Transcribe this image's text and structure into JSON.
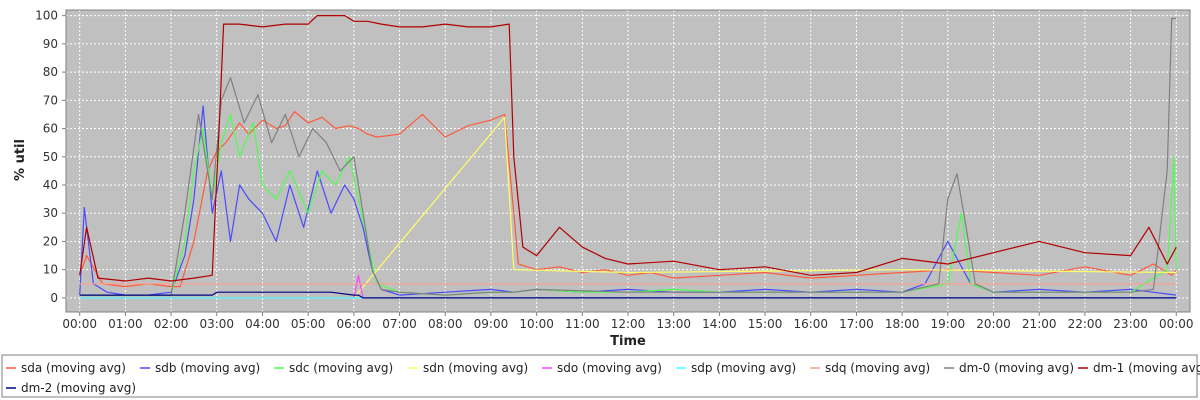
{
  "chart_data": {
    "type": "line",
    "title": "",
    "xlabel": "Time",
    "ylabel": "% util",
    "x_tick_labels": [
      "00:00",
      "01:00",
      "02:00",
      "03:00",
      "04:00",
      "05:00",
      "06:00",
      "07:00",
      "08:00",
      "09:00",
      "10:00",
      "11:00",
      "12:00",
      "13:00",
      "14:00",
      "15:00",
      "16:00",
      "17:00",
      "18:00",
      "19:00",
      "20:00",
      "21:00",
      "22:00",
      "23:00",
      "00:00"
    ],
    "x_tick_hours": [
      0,
      1,
      2,
      3,
      4,
      5,
      6,
      7,
      8,
      9,
      10,
      11,
      12,
      13,
      14,
      15,
      16,
      17,
      18,
      19,
      20,
      21,
      22,
      23,
      24
    ],
    "y_ticks": [
      0,
      10,
      20,
      30,
      40,
      50,
      60,
      70,
      80,
      90,
      100
    ],
    "xlim": [
      -0.3,
      24.3
    ],
    "ylim": [
      -5,
      102
    ],
    "grid": true,
    "legend_position": "bottom",
    "background": "#c0c0c0",
    "series": [
      {
        "name": "sda (moving avg)",
        "color": "#ff5a3c",
        "x": [
          0,
          0.15,
          0.5,
          1,
          1.5,
          2,
          2.2,
          2.5,
          2.8,
          3.0,
          3.2,
          3.5,
          3.7,
          4,
          4.3,
          4.5,
          4.7,
          5,
          5.3,
          5.6,
          5.9,
          6.1,
          6.3,
          6.5,
          7,
          7.5,
          8,
          8.5,
          9,
          9.3,
          9.5,
          9.6,
          10,
          10.5,
          11,
          11.5,
          12,
          12.5,
          13,
          14,
          15,
          16,
          17,
          18,
          19,
          20,
          21,
          22,
          23,
          23.5,
          23.9,
          24
        ],
        "y": [
          8,
          15,
          5,
          4,
          5,
          4,
          4,
          20,
          45,
          52,
          55,
          62,
          58,
          63,
          60,
          61,
          66,
          62,
          64,
          60,
          61,
          60,
          58,
          57,
          58,
          65,
          57,
          61,
          63,
          65,
          30,
          12,
          10,
          11,
          9,
          10,
          8,
          9,
          7,
          8,
          9,
          7,
          8,
          9,
          10,
          9,
          8,
          11,
          8,
          12,
          8,
          10
        ]
      },
      {
        "name": "sdb (moving avg)",
        "color": "#4a4aff",
        "x": [
          0,
          0.1,
          0.3,
          0.6,
          1,
          1.5,
          2,
          2.3,
          2.5,
          2.7,
          2.9,
          3.1,
          3.3,
          3.5,
          3.7,
          4,
          4.3,
          4.6,
          4.9,
          5.2,
          5.5,
          5.8,
          6,
          6.2,
          6.4,
          6.6,
          6.8,
          7,
          8,
          9,
          9.5,
          10,
          11,
          12,
          13,
          14,
          15,
          16,
          17,
          18,
          18.5,
          19,
          19.5,
          20,
          21,
          22,
          23,
          24
        ],
        "y": [
          1,
          32,
          5,
          2,
          1,
          1,
          2,
          15,
          35,
          68,
          30,
          45,
          20,
          40,
          35,
          30,
          20,
          40,
          25,
          45,
          30,
          40,
          35,
          25,
          10,
          3,
          2,
          1,
          2,
          3,
          2,
          3,
          2,
          3,
          2,
          2,
          3,
          2,
          3,
          2,
          5,
          20,
          5,
          2,
          3,
          2,
          3,
          1
        ]
      },
      {
        "name": "sdc (moving avg)",
        "color": "#4dff4d",
        "x": [
          0,
          1,
          2,
          2.3,
          2.5,
          2.7,
          2.9,
          3.1,
          3.3,
          3.5,
          3.8,
          4,
          4.3,
          4.6,
          5,
          5.3,
          5.6,
          5.9,
          6.1,
          6.3,
          6.5,
          7,
          8,
          9,
          9.5,
          10,
          11,
          12,
          13,
          14,
          15,
          16,
          17,
          18,
          19,
          19.3,
          19.5,
          20,
          21,
          22,
          23,
          23.8,
          23.95,
          24
        ],
        "y": [
          1,
          1,
          1,
          20,
          45,
          60,
          35,
          55,
          65,
          50,
          62,
          40,
          35,
          45,
          30,
          45,
          40,
          50,
          35,
          20,
          5,
          2,
          1,
          2,
          2,
          3,
          2,
          2,
          3,
          2,
          2,
          2,
          2,
          2,
          5,
          30,
          5,
          2,
          2,
          2,
          2,
          10,
          50,
          10
        ]
      },
      {
        "name": "sdn (moving avg)",
        "color": "#ffff66",
        "x": [
          0,
          6,
          9.3,
          9.5,
          12,
          18,
          24
        ],
        "y": [
          0,
          0,
          64,
          10,
          9,
          10,
          9
        ]
      },
      {
        "name": "sdo (moving avg)",
        "color": "#ff44ff",
        "x": [
          0,
          6,
          6.1,
          6.2,
          12,
          24
        ],
        "y": [
          0,
          0,
          8,
          0,
          0,
          0
        ]
      },
      {
        "name": "sdp (moving avg)",
        "color": "#44ffff",
        "x": [
          0,
          12,
          24
        ],
        "y": [
          0,
          0,
          0
        ]
      },
      {
        "name": "sdq (moving avg)",
        "color": "#ff9f8f",
        "x": [
          0,
          5,
          9.4,
          9.6,
          12,
          24
        ],
        "y": [
          5,
          5,
          5,
          5,
          5,
          5
        ]
      },
      {
        "name": "dm-0 (moving avg)",
        "color": "#808080",
        "x": [
          0,
          1,
          2,
          2.3,
          2.6,
          2.9,
          3.1,
          3.3,
          3.6,
          3.9,
          4.2,
          4.5,
          4.8,
          5.1,
          5.4,
          5.7,
          6,
          6.2,
          6.4,
          6.6,
          7,
          8,
          9,
          9.5,
          10,
          12,
          14,
          16,
          18,
          18.8,
          19,
          19.2,
          19.4,
          19.6,
          20,
          22,
          23,
          23.5,
          23.8,
          23.9,
          24
        ],
        "y": [
          1,
          1,
          1,
          30,
          65,
          35,
          70,
          78,
          62,
          72,
          55,
          65,
          50,
          60,
          55,
          45,
          50,
          30,
          10,
          3,
          2,
          1,
          2,
          2,
          3,
          2,
          2,
          2,
          2,
          5,
          35,
          44,
          25,
          5,
          2,
          2,
          2,
          3,
          45,
          99,
          99
        ]
      },
      {
        "name": "dm-1 (moving avg)",
        "color": "#b00000",
        "x": [
          0,
          0.15,
          0.4,
          1,
          1.5,
          2,
          2.5,
          2.9,
          3.05,
          3.15,
          3.5,
          4,
          4.5,
          5,
          5.2,
          5.5,
          5.8,
          6,
          6.3,
          6.6,
          7,
          7.5,
          8,
          8.5,
          9,
          9.4,
          9.5,
          9.7,
          10,
          10.5,
          11,
          11.5,
          12,
          13,
          14,
          15,
          16,
          17,
          18,
          19,
          20,
          21,
          22,
          23,
          23.4,
          23.8,
          24
        ],
        "y": [
          8,
          25,
          7,
          6,
          7,
          6,
          7,
          8,
          60,
          97,
          97,
          96,
          97,
          97,
          100,
          100,
          100,
          98,
          98,
          97,
          96,
          96,
          97,
          96,
          96,
          97,
          50,
          18,
          15,
          25,
          18,
          14,
          12,
          13,
          10,
          11,
          8,
          9,
          14,
          12,
          16,
          20,
          16,
          15,
          25,
          12,
          18
        ]
      },
      {
        "name": "dm-2 (moving avg)",
        "color": "#000080",
        "x": [
          0,
          2,
          2.9,
          3.0,
          3.1,
          3.5,
          4,
          5,
          5.5,
          6,
          6.1,
          6.2,
          9,
          9.5,
          10,
          12,
          14,
          16,
          18,
          20,
          22,
          24
        ],
        "y": [
          1,
          1,
          1,
          2,
          2,
          2,
          2,
          2,
          2,
          1,
          1,
          0,
          0,
          0,
          0,
          0,
          0,
          0,
          0,
          0,
          0,
          0
        ]
      }
    ]
  }
}
